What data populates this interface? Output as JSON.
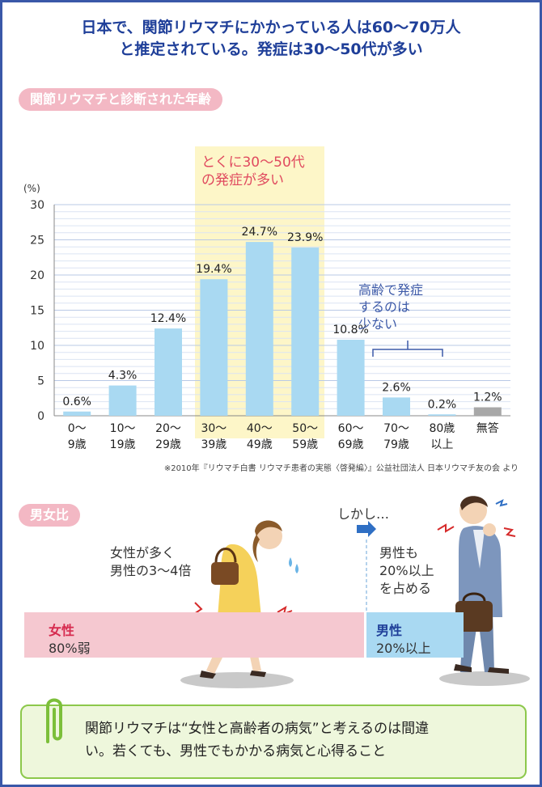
{
  "headline": {
    "line1": "日本で、関節リウマチにかかっている人は60～70万人",
    "line2": "と推定されている。発症は30～50代が多い"
  },
  "section1_title": "関節リウマチと診断された年齢",
  "section2_title": "男女比",
  "highlight": {
    "line1": "とくに30～50代",
    "line2": "の発症が多い"
  },
  "elderly_note": {
    "line1": "高齢で発症",
    "line2": "するのは",
    "line3": "少ない"
  },
  "source": "※2010年『リウマチ白書 リウマチ患者の実態〈啓発編〉』公益社団法人 日本リウマチ友の会 より",
  "chart_data": {
    "type": "bar",
    "categories": [
      [
        "0～",
        "9歳"
      ],
      [
        "10～",
        "19歳"
      ],
      [
        "20～",
        "29歳"
      ],
      [
        "30～",
        "39歳"
      ],
      [
        "40～",
        "49歳"
      ],
      [
        "50～",
        "59歳"
      ],
      [
        "60～",
        "69歳"
      ],
      [
        "70～",
        "79歳"
      ],
      [
        "80歳",
        "以上"
      ],
      [
        "無答",
        ""
      ]
    ],
    "values": [
      0.6,
      4.3,
      12.4,
      19.4,
      24.7,
      23.9,
      10.8,
      2.6,
      0.2,
      1.2
    ],
    "value_labels": [
      "0.6%",
      "4.3%",
      "12.4%",
      "19.4%",
      "24.7%",
      "23.9%",
      "10.8%",
      "2.6%",
      "0.2%",
      "1.2%"
    ],
    "ylabel": "(%)",
    "ylim": [
      0,
      30
    ],
    "yticks": [
      0,
      5,
      10,
      15,
      20,
      25,
      30
    ],
    "grid": true,
    "highlight_categories": [
      "30～39歳",
      "40～49歳",
      "50～59歳"
    ],
    "colors": {
      "bar": "#a9d9f2",
      "bar_no_answer": "#a8a8a8",
      "highlight_band": "#fdf6c8"
    }
  },
  "gender": {
    "female_note": {
      "line1": "女性が多く",
      "line2": "男性の3～4倍"
    },
    "however": "しかし…",
    "male_note": {
      "line1": "男性も",
      "line2": "20%以上",
      "line3": "を占める"
    },
    "female": {
      "label": "女性",
      "value": "80%弱",
      "share": 0.78
    },
    "male": {
      "label": "男性",
      "value": "20%以上",
      "share": 0.22
    }
  },
  "conclusion": {
    "line1": "関節リウマチは“女性と高齢者の病気”と考えるのは間違",
    "line2": "い。若くても、男性でもかかる病気と心得ること"
  }
}
